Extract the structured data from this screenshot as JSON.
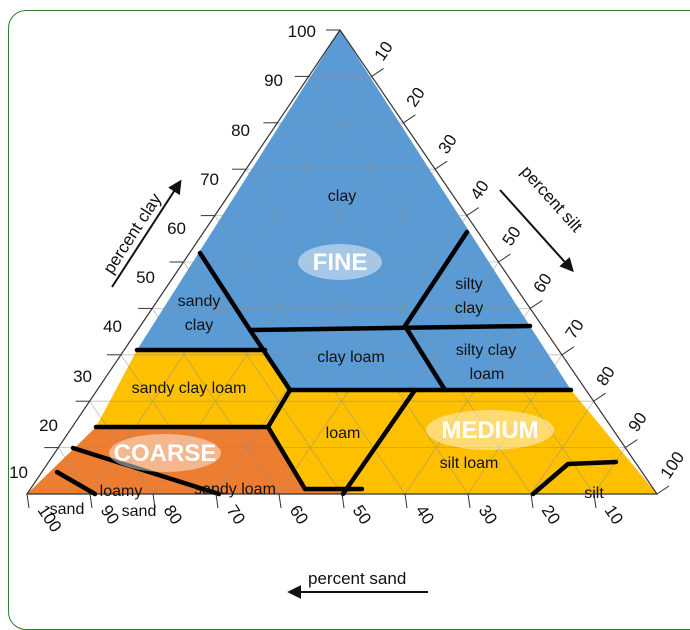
{
  "diagram": {
    "arrows": {
      "clay": "percent clay",
      "silt": "percent silt",
      "sand": "percent sand"
    },
    "clay_ticks": [
      "10",
      "20",
      "30",
      "40",
      "50",
      "60",
      "70",
      "80",
      "90",
      "100"
    ],
    "silt_ticks": [
      "10",
      "20",
      "30",
      "40",
      "50",
      "60",
      "70",
      "80",
      "90",
      "100"
    ],
    "sand_ticks": [
      "100",
      "90",
      "80",
      "70",
      "60",
      "50",
      "40",
      "30",
      "20",
      "10"
    ],
    "textures": {
      "fine": "FINE",
      "medium": "MEDIUM",
      "coarse": "COARSE"
    },
    "zones": {
      "clay": "clay",
      "sandy_clay_1": "sandy",
      "sandy_clay_2": "clay",
      "silty_clay_1": "silty",
      "silty_clay_2": "clay",
      "clay_loam": "clay loam",
      "silty_clay_loam_1": "silty clay",
      "silty_clay_loam_2": "loam",
      "sandy_clay_loam": "sandy clay loam",
      "loam": "loam",
      "silt_loam": "silt loam",
      "silt": "silt",
      "sandy_loam": "sandy loam",
      "loamy_sand_1": "loamy",
      "loamy_sand_2": "sand",
      "sand": "sand"
    },
    "colors": {
      "fine": "#5b9bd5",
      "medium": "#ffc000",
      "coarse": "#ed7d31",
      "ellipse": "#ffffff"
    }
  }
}
